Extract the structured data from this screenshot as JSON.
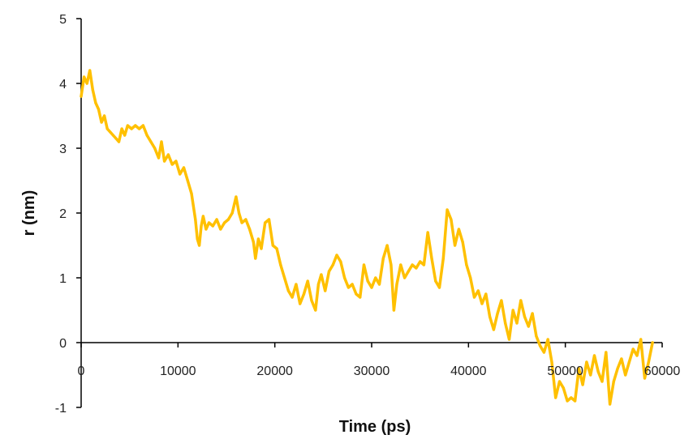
{
  "chart_data": {
    "type": "line",
    "title": "",
    "xlabel": "Time (ps)",
    "ylabel": "r (nm)",
    "xlim": [
      0,
      60000
    ],
    "ylim": [
      -1,
      5
    ],
    "xticks": [
      0,
      10000,
      20000,
      30000,
      40000,
      50000,
      60000
    ],
    "yticks": [
      -1,
      0,
      1,
      2,
      3,
      4,
      5
    ],
    "grid": false,
    "legend": "none",
    "series": [
      {
        "color": "#FFC000",
        "x": [
          0,
          300,
          600,
          900,
          1200,
          1500,
          1800,
          2100,
          2400,
          2700,
          3000,
          3300,
          3600,
          3900,
          4200,
          4500,
          4800,
          5200,
          5600,
          6000,
          6400,
          6800,
          7200,
          7600,
          8000,
          8300,
          8600,
          9000,
          9400,
          9800,
          10200,
          10600,
          11000,
          11400,
          11800,
          12000,
          12200,
          12400,
          12600,
          12900,
          13200,
          13600,
          14000,
          14400,
          14800,
          15200,
          15600,
          16000,
          16300,
          16600,
          17000,
          17400,
          17800,
          18000,
          18300,
          18600,
          19000,
          19400,
          19800,
          20200,
          20600,
          21000,
          21400,
          21800,
          22200,
          22600,
          23000,
          23400,
          23800,
          24200,
          24500,
          24800,
          25200,
          25600,
          26000,
          26400,
          26800,
          27200,
          27600,
          28000,
          28400,
          28800,
          29200,
          29600,
          30000,
          30400,
          30800,
          31200,
          31600,
          32000,
          32300,
          32600,
          33000,
          33400,
          33800,
          34200,
          34600,
          35000,
          35400,
          35800,
          36200,
          36600,
          37000,
          37400,
          37800,
          38200,
          38600,
          39000,
          39400,
          39800,
          40200,
          40600,
          41000,
          41400,
          41800,
          42200,
          42600,
          43000,
          43400,
          43800,
          44200,
          44600,
          45000,
          45400,
          45800,
          46200,
          46600,
          47000,
          47400,
          47800,
          48200,
          48600,
          49000,
          49400,
          49800,
          50200,
          50600,
          51000,
          51400,
          51800,
          52200,
          52600,
          53000,
          53400,
          53800,
          54200,
          54600,
          55000,
          55400,
          55800,
          56200,
          56600,
          57000,
          57400,
          57800,
          58200,
          58600,
          59000
        ],
        "y": [
          3.8,
          4.1,
          4.0,
          4.2,
          3.9,
          3.7,
          3.6,
          3.4,
          3.5,
          3.3,
          3.25,
          3.2,
          3.15,
          3.1,
          3.3,
          3.2,
          3.35,
          3.3,
          3.35,
          3.3,
          3.35,
          3.2,
          3.1,
          3.0,
          2.85,
          3.1,
          2.8,
          2.9,
          2.75,
          2.8,
          2.6,
          2.7,
          2.5,
          2.3,
          1.9,
          1.6,
          1.5,
          1.8,
          1.95,
          1.75,
          1.85,
          1.8,
          1.9,
          1.75,
          1.85,
          1.9,
          2.0,
          2.25,
          2.0,
          1.85,
          1.9,
          1.75,
          1.55,
          1.3,
          1.6,
          1.45,
          1.85,
          1.9,
          1.5,
          1.45,
          1.2,
          1.0,
          0.8,
          0.7,
          0.9,
          0.6,
          0.75,
          0.95,
          0.65,
          0.5,
          0.9,
          1.05,
          0.8,
          1.1,
          1.2,
          1.35,
          1.25,
          1.0,
          0.85,
          0.9,
          0.75,
          0.7,
          1.2,
          0.95,
          0.85,
          1.0,
          0.9,
          1.3,
          1.5,
          1.2,
          0.5,
          0.9,
          1.2,
          1.0,
          1.1,
          1.2,
          1.15,
          1.25,
          1.2,
          1.7,
          1.3,
          0.95,
          0.85,
          1.3,
          2.05,
          1.9,
          1.5,
          1.75,
          1.55,
          1.2,
          1.0,
          0.7,
          0.8,
          0.6,
          0.75,
          0.4,
          0.2,
          0.45,
          0.65,
          0.3,
          0.05,
          0.5,
          0.3,
          0.65,
          0.4,
          0.25,
          0.45,
          0.1,
          -0.05,
          -0.15,
          0.05,
          -0.3,
          -0.85,
          -0.6,
          -0.7,
          -0.9,
          -0.85,
          -0.9,
          -0.4,
          -0.65,
          -0.3,
          -0.5,
          -0.2,
          -0.45,
          -0.6,
          -0.15,
          -0.95,
          -0.6,
          -0.4,
          -0.25,
          -0.5,
          -0.3,
          -0.1,
          -0.2,
          0.05,
          -0.55,
          -0.3,
          0.0
        ]
      }
    ]
  }
}
